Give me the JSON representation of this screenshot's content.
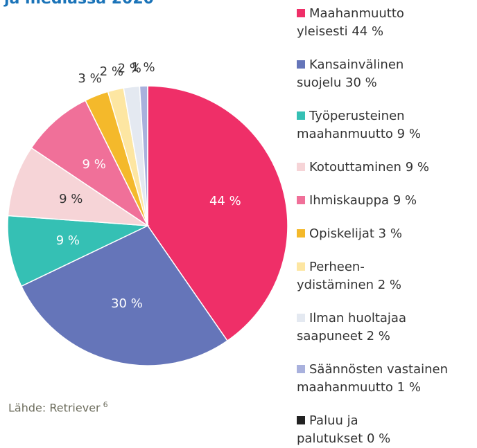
{
  "chart_data": {
    "type": "pie",
    "title": "ja mediassa 2020",
    "source": "Lähde: Retriever",
    "source_note": "6",
    "series": [
      {
        "name": "Maahanmuutto\nyleisesti 44 %",
        "color": "#ef2f68",
        "values": [
          44
        ],
        "value_labels": [
          "44 %"
        ]
      },
      {
        "name": "Kansainvälinen\nsuojelu 30 %",
        "color": "#6575b9",
        "values": [
          30
        ],
        "value_labels": [
          "30 %"
        ]
      },
      {
        "name": "Työperusteinen\nmaahanmuutto 9 %",
        "color": "#35c0b4",
        "values": [
          9
        ],
        "value_labels": [
          "9 %"
        ]
      },
      {
        "name": "Kotouttaminen 9 %",
        "color": "#f6d4d7",
        "values": [
          9
        ],
        "value_labels": [
          "9 %"
        ]
      },
      {
        "name": "Ihmiskauppa 9 %",
        "color": "#f07099",
        "values": [
          9
        ],
        "value_labels": [
          "9 %"
        ]
      },
      {
        "name": "Opiskelijat 3 %",
        "color": "#f4b92b",
        "values": [
          3
        ],
        "value_labels": [
          "3 %"
        ]
      },
      {
        "name": "Perheen-\nydistäminen 2 %",
        "color": "#fde6a2",
        "values": [
          2
        ],
        "value_labels": [
          "2 %"
        ]
      },
      {
        "name": "Ilman huoltajaa\nsaapuneet 2 %",
        "color": "#e4e9f1",
        "values": [
          2
        ],
        "value_labels": [
          "2 %"
        ]
      },
      {
        "name": "Säännösten vastainen\nmaahanmuutto 1 %",
        "color": "#a9b1dd",
        "values": [
          1
        ],
        "value_labels": [
          "1 %"
        ]
      },
      {
        "name": "Paluu ja\npalutukset 0 %",
        "color": "#222222",
        "values": [
          0
        ],
        "value_labels": [
          null
        ]
      }
    ]
  }
}
